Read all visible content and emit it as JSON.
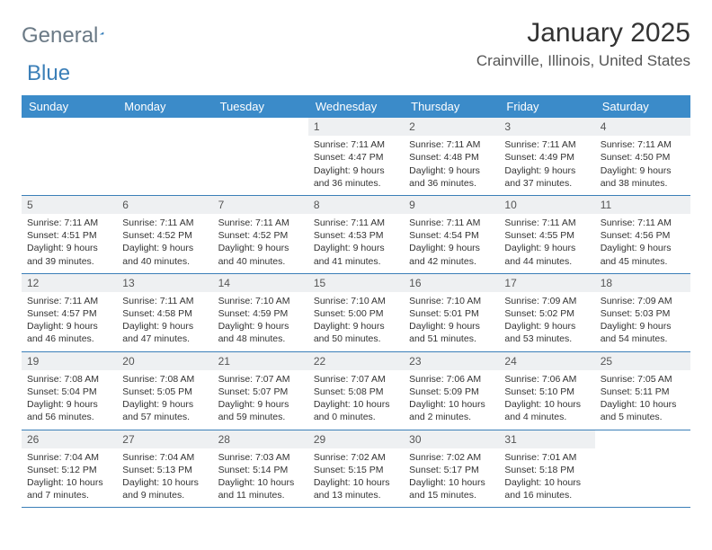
{
  "logo": {
    "part1": "General",
    "part2": "Blue"
  },
  "title": "January 2025",
  "location": "Crainville, Illinois, United States",
  "header_bg": "#3b8bc9",
  "daynames": [
    "Sunday",
    "Monday",
    "Tuesday",
    "Wednesday",
    "Thursday",
    "Friday",
    "Saturday"
  ],
  "weeks": [
    [
      null,
      null,
      null,
      {
        "n": "1",
        "sr": "7:11 AM",
        "ss": "4:47 PM",
        "dl": "9 hours and 36 minutes."
      },
      {
        "n": "2",
        "sr": "7:11 AM",
        "ss": "4:48 PM",
        "dl": "9 hours and 36 minutes."
      },
      {
        "n": "3",
        "sr": "7:11 AM",
        "ss": "4:49 PM",
        "dl": "9 hours and 37 minutes."
      },
      {
        "n": "4",
        "sr": "7:11 AM",
        "ss": "4:50 PM",
        "dl": "9 hours and 38 minutes."
      }
    ],
    [
      {
        "n": "5",
        "sr": "7:11 AM",
        "ss": "4:51 PM",
        "dl": "9 hours and 39 minutes."
      },
      {
        "n": "6",
        "sr": "7:11 AM",
        "ss": "4:52 PM",
        "dl": "9 hours and 40 minutes."
      },
      {
        "n": "7",
        "sr": "7:11 AM",
        "ss": "4:52 PM",
        "dl": "9 hours and 40 minutes."
      },
      {
        "n": "8",
        "sr": "7:11 AM",
        "ss": "4:53 PM",
        "dl": "9 hours and 41 minutes."
      },
      {
        "n": "9",
        "sr": "7:11 AM",
        "ss": "4:54 PM",
        "dl": "9 hours and 42 minutes."
      },
      {
        "n": "10",
        "sr": "7:11 AM",
        "ss": "4:55 PM",
        "dl": "9 hours and 44 minutes."
      },
      {
        "n": "11",
        "sr": "7:11 AM",
        "ss": "4:56 PM",
        "dl": "9 hours and 45 minutes."
      }
    ],
    [
      {
        "n": "12",
        "sr": "7:11 AM",
        "ss": "4:57 PM",
        "dl": "9 hours and 46 minutes."
      },
      {
        "n": "13",
        "sr": "7:11 AM",
        "ss": "4:58 PM",
        "dl": "9 hours and 47 minutes."
      },
      {
        "n": "14",
        "sr": "7:10 AM",
        "ss": "4:59 PM",
        "dl": "9 hours and 48 minutes."
      },
      {
        "n": "15",
        "sr": "7:10 AM",
        "ss": "5:00 PM",
        "dl": "9 hours and 50 minutes."
      },
      {
        "n": "16",
        "sr": "7:10 AM",
        "ss": "5:01 PM",
        "dl": "9 hours and 51 minutes."
      },
      {
        "n": "17",
        "sr": "7:09 AM",
        "ss": "5:02 PM",
        "dl": "9 hours and 53 minutes."
      },
      {
        "n": "18",
        "sr": "7:09 AM",
        "ss": "5:03 PM",
        "dl": "9 hours and 54 minutes."
      }
    ],
    [
      {
        "n": "19",
        "sr": "7:08 AM",
        "ss": "5:04 PM",
        "dl": "9 hours and 56 minutes."
      },
      {
        "n": "20",
        "sr": "7:08 AM",
        "ss": "5:05 PM",
        "dl": "9 hours and 57 minutes."
      },
      {
        "n": "21",
        "sr": "7:07 AM",
        "ss": "5:07 PM",
        "dl": "9 hours and 59 minutes."
      },
      {
        "n": "22",
        "sr": "7:07 AM",
        "ss": "5:08 PM",
        "dl": "10 hours and 0 minutes."
      },
      {
        "n": "23",
        "sr": "7:06 AM",
        "ss": "5:09 PM",
        "dl": "10 hours and 2 minutes."
      },
      {
        "n": "24",
        "sr": "7:06 AM",
        "ss": "5:10 PM",
        "dl": "10 hours and 4 minutes."
      },
      {
        "n": "25",
        "sr": "7:05 AM",
        "ss": "5:11 PM",
        "dl": "10 hours and 5 minutes."
      }
    ],
    [
      {
        "n": "26",
        "sr": "7:04 AM",
        "ss": "5:12 PM",
        "dl": "10 hours and 7 minutes."
      },
      {
        "n": "27",
        "sr": "7:04 AM",
        "ss": "5:13 PM",
        "dl": "10 hours and 9 minutes."
      },
      {
        "n": "28",
        "sr": "7:03 AM",
        "ss": "5:14 PM",
        "dl": "10 hours and 11 minutes."
      },
      {
        "n": "29",
        "sr": "7:02 AM",
        "ss": "5:15 PM",
        "dl": "10 hours and 13 minutes."
      },
      {
        "n": "30",
        "sr": "7:02 AM",
        "ss": "5:17 PM",
        "dl": "10 hours and 15 minutes."
      },
      {
        "n": "31",
        "sr": "7:01 AM",
        "ss": "5:18 PM",
        "dl": "10 hours and 16 minutes."
      },
      null
    ]
  ],
  "labels": {
    "sunrise": "Sunrise:",
    "sunset": "Sunset:",
    "daylight": "Daylight:"
  }
}
